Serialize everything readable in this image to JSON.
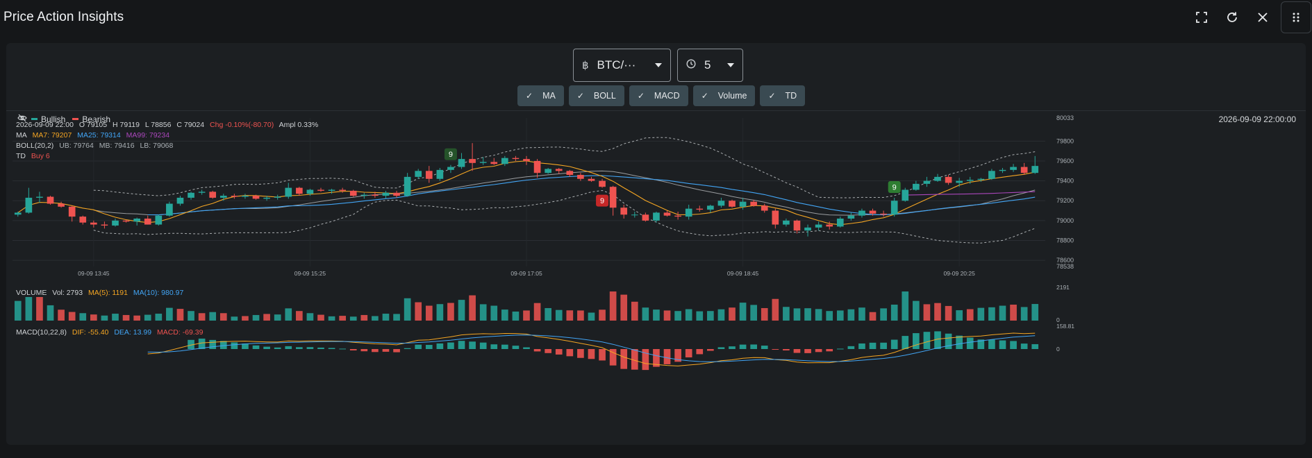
{
  "window": {
    "title": "Price Action Insights"
  },
  "controls": {
    "symbol": {
      "icon": "bitcoin-icon",
      "value": "BTC/···"
    },
    "interval": {
      "icon": "clock-icon",
      "value": "5"
    }
  },
  "indicators": [
    {
      "label": "MA",
      "checked": true
    },
    {
      "label": "BOLL",
      "checked": true
    },
    {
      "label": "MACD",
      "checked": true
    },
    {
      "label": "Volume",
      "checked": true
    },
    {
      "label": "TD",
      "checked": true
    }
  ],
  "legend": {
    "bullish": "Bullish",
    "bearish": "Bearish",
    "bullish_color": "#26a69a",
    "bearish_color": "#ef5350"
  },
  "timestamp": "2026-09-09 22:00:00",
  "info": {
    "ohlc_time": "2026-09-09 22:00",
    "open": "O 79105",
    "high": "H 79119",
    "low": "L 78856",
    "close": "C 79024",
    "chg": "Chg -0.10%(-80.70)",
    "ampl": "Ampl 0.33%",
    "ma_label": "MA",
    "ma7": "MA7: 79207",
    "ma25": "MA25: 79314",
    "ma99": "MA99: 79234",
    "boll_label": "BOLL(20,2)",
    "ub": "UB: 79764",
    "mb": "MB: 79416",
    "lb": "LB: 79068",
    "td_label": "TD",
    "td_value": "Buy 6",
    "vol_label": "VOLUME",
    "vol": "Vol: 2793",
    "vol_ma5": "MA(5): 1191",
    "vol_ma10": "MA(10): 980.97",
    "macd_label": "MACD(10,22,8)",
    "dif": "DIF: -55.40",
    "dea": "DEA: 13.99",
    "macd": "MACD: -69.39"
  },
  "colors": {
    "up": "#26a69a",
    "down": "#ef5350",
    "ma7": "#f5a623",
    "ma25": "#42a5f5",
    "ma99": "#ab47bc",
    "boll": "#cfd3d6",
    "dif": "#f5a623",
    "dea": "#42a5f5"
  },
  "chart_data": {
    "type": "candlestick",
    "price_axis": {
      "ticks": [
        "80033",
        "79800",
        "79600",
        "79400",
        "79200",
        "79000",
        "78800",
        "78600",
        "78538"
      ],
      "ylim": [
        78538,
        80033
      ]
    },
    "time_axis": {
      "ticks": [
        "09-09 13:45",
        "09-09 15:25",
        "09-09 17:05",
        "09-09 18:45",
        "09-09 20:25"
      ]
    },
    "volume_axis": {
      "ticks": [
        "2191",
        "0"
      ]
    },
    "macd_axis": {
      "ticks": [
        "158.81",
        "0"
      ]
    },
    "td_markers": [
      {
        "label": "9",
        "type": "sell",
        "index": 40
      },
      {
        "label": "9",
        "type": "buy",
        "index": 54
      },
      {
        "label": "9",
        "type": "sell",
        "index": 81
      }
    ],
    "candles": [
      [
        79060,
        79090,
        79040,
        79080
      ],
      [
        79080,
        79330,
        79070,
        79230
      ],
      [
        79230,
        79290,
        79180,
        79240
      ],
      [
        79240,
        79250,
        79160,
        79170
      ],
      [
        79170,
        79190,
        79130,
        79140
      ],
      [
        79140,
        79150,
        78990,
        79040
      ],
      [
        79040,
        79050,
        78960,
        78980
      ],
      [
        78980,
        79000,
        78930,
        78960
      ],
      [
        78960,
        78990,
        78920,
        78950
      ],
      [
        78950,
        79020,
        78940,
        79000
      ],
      [
        79000,
        79010,
        78980,
        78990
      ],
      [
        78990,
        79030,
        78950,
        79020
      ],
      [
        79020,
        79050,
        78960,
        78960
      ],
      [
        78960,
        79060,
        78950,
        79050
      ],
      [
        79050,
        79190,
        79040,
        79170
      ],
      [
        79170,
        79250,
        79150,
        79230
      ],
      [
        79230,
        79290,
        79210,
        79280
      ],
      [
        79280,
        79310,
        79260,
        79290
      ],
      [
        79290,
        79300,
        79220,
        79230
      ],
      [
        79230,
        79270,
        79200,
        79250
      ],
      [
        79250,
        79270,
        79220,
        79240
      ],
      [
        79240,
        79270,
        79220,
        79250
      ],
      [
        79250,
        79260,
        79210,
        79220
      ],
      [
        79220,
        79250,
        79200,
        79230
      ],
      [
        79230,
        79260,
        79210,
        79240
      ],
      [
        79240,
        79380,
        79220,
        79330
      ],
      [
        79330,
        79340,
        79250,
        79270
      ],
      [
        79270,
        79320,
        79250,
        79310
      ],
      [
        79310,
        79330,
        79290,
        79300
      ],
      [
        79300,
        79320,
        79270,
        79310
      ],
      [
        79310,
        79330,
        79280,
        79300
      ],
      [
        79300,
        79310,
        79240,
        79250
      ],
      [
        79250,
        79280,
        79220,
        79260
      ],
      [
        79260,
        79290,
        79230,
        79250
      ],
      [
        79250,
        79300,
        79220,
        79280
      ],
      [
        79280,
        79300,
        79230,
        79250
      ],
      [
        79250,
        79480,
        79240,
        79440
      ],
      [
        79440,
        79520,
        79420,
        79500
      ],
      [
        79500,
        79550,
        79380,
        79420
      ],
      [
        79420,
        79530,
        79400,
        79510
      ],
      [
        79510,
        79560,
        79480,
        79540
      ],
      [
        79540,
        79680,
        79520,
        79620
      ],
      [
        79620,
        79780,
        79500,
        79580
      ],
      [
        79580,
        79640,
        79560,
        79590
      ],
      [
        79590,
        79630,
        79560,
        79570
      ],
      [
        79570,
        79650,
        79550,
        79630
      ],
      [
        79630,
        79650,
        79600,
        79620
      ],
      [
        79620,
        79650,
        79560,
        79600
      ],
      [
        79600,
        79620,
        79430,
        79480
      ],
      [
        79480,
        79530,
        79470,
        79520
      ],
      [
        79520,
        79530,
        79470,
        79500
      ],
      [
        79500,
        79510,
        79440,
        79460
      ],
      [
        79460,
        79480,
        79400,
        79420
      ],
      [
        79420,
        79440,
        79390,
        79400
      ],
      [
        79400,
        79420,
        79330,
        79340
      ],
      [
        79340,
        79350,
        79050,
        79130
      ],
      [
        79130,
        79160,
        79020,
        79060
      ],
      [
        79060,
        79090,
        79030,
        79060
      ],
      [
        79060,
        79080,
        78990,
        79000
      ],
      [
        79000,
        79090,
        78980,
        79080
      ],
      [
        79080,
        79100,
        79040,
        79050
      ],
      [
        79050,
        79090,
        79010,
        79040
      ],
      [
        79040,
        79160,
        79010,
        79120
      ],
      [
        79120,
        79150,
        79090,
        79110
      ],
      [
        79110,
        79160,
        79080,
        79150
      ],
      [
        79150,
        79230,
        79130,
        79200
      ],
      [
        79200,
        79210,
        79130,
        79140
      ],
      [
        79140,
        79230,
        79110,
        79190
      ],
      [
        79190,
        79210,
        79140,
        79150
      ],
      [
        79150,
        79170,
        79080,
        79100
      ],
      [
        79100,
        79120,
        78920,
        78960
      ],
      [
        78960,
        79020,
        78940,
        79000
      ],
      [
        79000,
        79010,
        78870,
        78900
      ],
      [
        78900,
        78960,
        78840,
        78930
      ],
      [
        78930,
        78990,
        78900,
        78960
      ],
      [
        78960,
        78990,
        78910,
        78940
      ],
      [
        78940,
        79040,
        78930,
        79020
      ],
      [
        79020,
        79080,
        79000,
        79050
      ],
      [
        79050,
        79120,
        79030,
        79100
      ],
      [
        79100,
        79120,
        79050,
        79070
      ],
      [
        79070,
        79100,
        79040,
        79060
      ],
      [
        79060,
        79230,
        79040,
        79200
      ],
      [
        79200,
        79330,
        79190,
        79310
      ],
      [
        79310,
        79400,
        79300,
        79370
      ],
      [
        79370,
        79440,
        79340,
        79400
      ],
      [
        79400,
        79470,
        79390,
        79440
      ],
      [
        79440,
        79460,
        79360,
        79380
      ],
      [
        79380,
        79430,
        79340,
        79400
      ],
      [
        79400,
        79440,
        79370,
        79410
      ],
      [
        79410,
        79430,
        79390,
        79420
      ],
      [
        79420,
        79520,
        79410,
        79500
      ],
      [
        79500,
        79530,
        79480,
        79510
      ],
      [
        79510,
        79570,
        79490,
        79540
      ],
      [
        79540,
        79580,
        79460,
        79480
      ],
      [
        79480,
        79650,
        79470,
        79550
      ]
    ],
    "volumes": [
      [
        1480,
        "u"
      ],
      [
        2050,
        "u"
      ],
      [
        2190,
        "d"
      ],
      [
        1150,
        "u"
      ],
      [
        820,
        "d"
      ],
      [
        650,
        "d"
      ],
      [
        560,
        "u"
      ],
      [
        460,
        "d"
      ],
      [
        380,
        "u"
      ],
      [
        520,
        "u"
      ],
      [
        420,
        "d"
      ],
      [
        380,
        "d"
      ],
      [
        440,
        "u"
      ],
      [
        520,
        "u"
      ],
      [
        960,
        "u"
      ],
      [
        880,
        "d"
      ],
      [
        720,
        "u"
      ],
      [
        560,
        "d"
      ],
      [
        640,
        "u"
      ],
      [
        560,
        "d"
      ],
      [
        300,
        "u"
      ],
      [
        340,
        "d"
      ],
      [
        420,
        "u"
      ],
      [
        500,
        "d"
      ],
      [
        460,
        "u"
      ],
      [
        920,
        "u"
      ],
      [
        720,
        "d"
      ],
      [
        560,
        "u"
      ],
      [
        440,
        "d"
      ],
      [
        320,
        "u"
      ],
      [
        360,
        "d"
      ],
      [
        300,
        "u"
      ],
      [
        420,
        "d"
      ],
      [
        340,
        "u"
      ],
      [
        520,
        "u"
      ],
      [
        500,
        "u"
      ],
      [
        1680,
        "u"
      ],
      [
        1380,
        "d"
      ],
      [
        1120,
        "d"
      ],
      [
        1240,
        "u"
      ],
      [
        1330,
        "d"
      ],
      [
        1560,
        "u"
      ],
      [
        1900,
        "d"
      ],
      [
        1230,
        "u"
      ],
      [
        1120,
        "u"
      ],
      [
        830,
        "u"
      ],
      [
        680,
        "u"
      ],
      [
        760,
        "d"
      ],
      [
        1320,
        "d"
      ],
      [
        940,
        "u"
      ],
      [
        800,
        "u"
      ],
      [
        770,
        "d"
      ],
      [
        760,
        "d"
      ],
      [
        600,
        "u"
      ],
      [
        820,
        "d"
      ],
      [
        2190,
        "d"
      ],
      [
        1950,
        "d"
      ],
      [
        1420,
        "d"
      ],
      [
        980,
        "u"
      ],
      [
        830,
        "u"
      ],
      [
        760,
        "d"
      ],
      [
        720,
        "u"
      ],
      [
        860,
        "u"
      ],
      [
        700,
        "u"
      ],
      [
        720,
        "u"
      ],
      [
        850,
        "u"
      ],
      [
        980,
        "d"
      ],
      [
        1350,
        "u"
      ],
      [
        1180,
        "u"
      ],
      [
        940,
        "d"
      ],
      [
        1630,
        "d"
      ],
      [
        1030,
        "u"
      ],
      [
        920,
        "u"
      ],
      [
        930,
        "u"
      ],
      [
        870,
        "u"
      ],
      [
        720,
        "u"
      ],
      [
        760,
        "u"
      ],
      [
        850,
        "u"
      ],
      [
        980,
        "u"
      ],
      [
        640,
        "d"
      ],
      [
        920,
        "u"
      ],
      [
        1200,
        "u"
      ],
      [
        2190,
        "u"
      ],
      [
        1480,
        "u"
      ],
      [
        1230,
        "d"
      ],
      [
        1320,
        "d"
      ],
      [
        1100,
        "d"
      ],
      [
        780,
        "u"
      ],
      [
        860,
        "d"
      ],
      [
        960,
        "u"
      ],
      [
        1000,
        "u"
      ],
      [
        1120,
        "u"
      ],
      [
        1200,
        "d"
      ],
      [
        1020,
        "u"
      ],
      [
        1250,
        "u"
      ]
    ]
  }
}
